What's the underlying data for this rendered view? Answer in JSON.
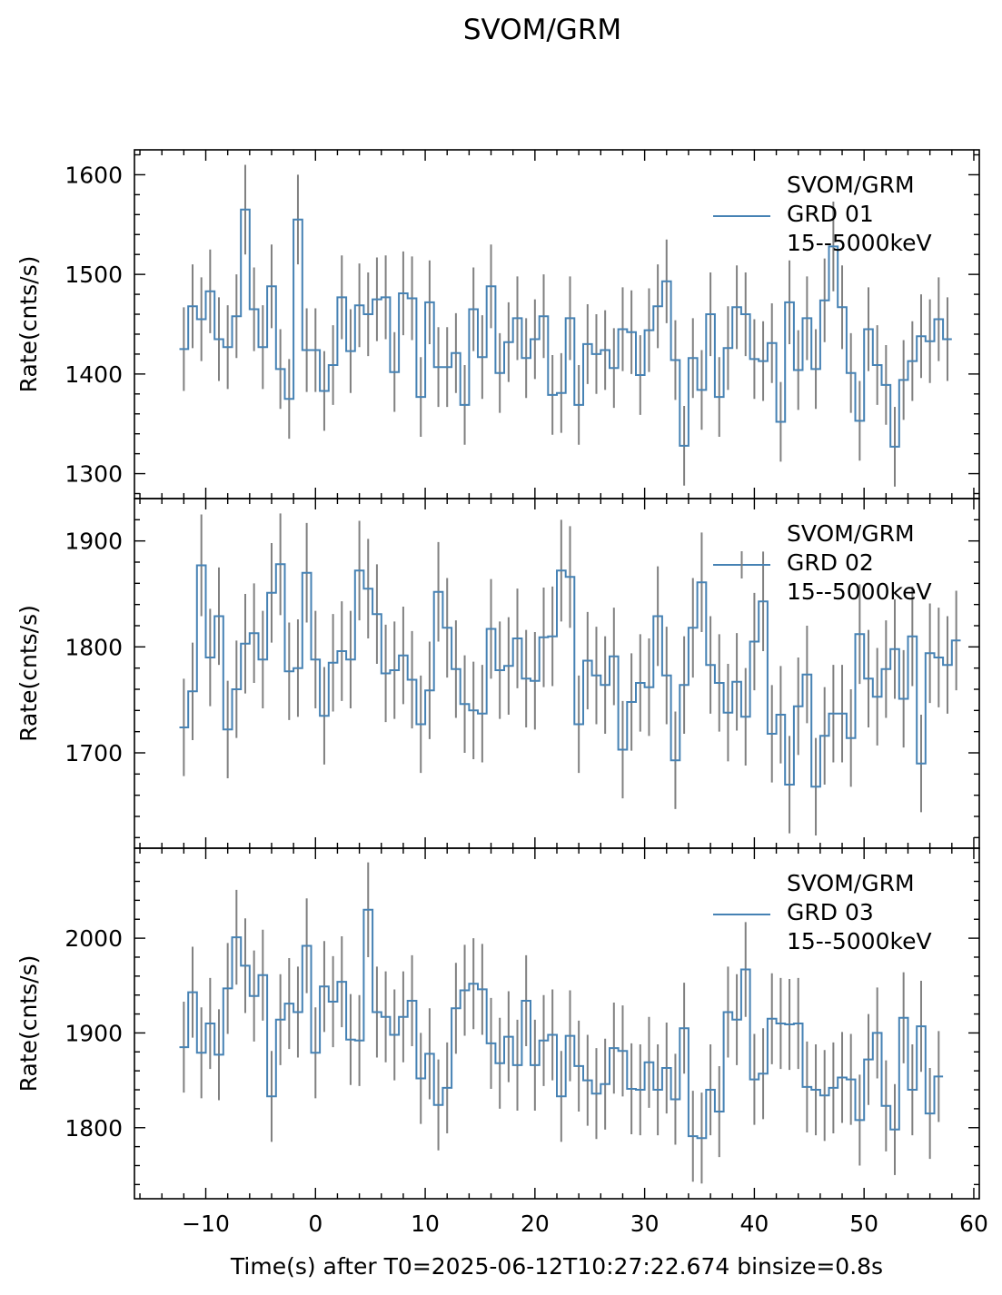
{
  "figure": {
    "title": "SVOM/GRM",
    "xlabel": "Time(s) after T0=2025-06-12T10:27:22.674 binsize=0.8s"
  },
  "colors": {
    "line": "#4682b4",
    "errorbar": "#808080",
    "axes": "#000000",
    "background": "#ffffff"
  },
  "chart_data": [
    {
      "type": "line",
      "style": "step",
      "legend": {
        "position": "top-right",
        "lines": [
          "SVOM/GRM",
          " GRD 01",
          "15--5000keV"
        ]
      },
      "ylabel": "Rate(cnts/s)",
      "xlim": [
        -16.5,
        60.5
      ],
      "ylim": [
        1275,
        1625
      ],
      "xticks": [
        -10,
        0,
        10,
        20,
        30,
        40,
        50,
        60
      ],
      "yticks": [
        1300,
        1400,
        1500,
        1600
      ],
      "x_start": -12.4,
      "binsize": 0.8,
      "values": [
        1425,
        1468,
        1455,
        1483,
        1435,
        1427,
        1458,
        1565,
        1465,
        1427,
        1488,
        1405,
        1375,
        1555,
        1424,
        1424,
        1383,
        1409,
        1477,
        1423,
        1469,
        1460,
        1475,
        1477,
        1402,
        1481,
        1476,
        1377,
        1472,
        1407,
        1407,
        1421,
        1369,
        1465,
        1417,
        1488,
        1401,
        1432,
        1456,
        1416,
        1435,
        1458,
        1379,
        1381,
        1456,
        1369,
        1430,
        1420,
        1424,
        1406,
        1445,
        1442,
        1399,
        1444,
        1468,
        1493,
        1414,
        1328,
        1416,
        1384,
        1460,
        1377,
        1426,
        1467,
        1460,
        1415,
        1413,
        1431,
        1352,
        1472,
        1404,
        1456,
        1405,
        1474,
        1528,
        1467,
        1401,
        1353,
        1445,
        1409,
        1389,
        1327,
        1394,
        1413,
        1438,
        1433,
        1455,
        1435
      ],
      "errors": [
        42,
        42,
        42,
        42,
        42,
        42,
        42,
        45,
        42,
        42,
        42,
        40,
        40,
        45,
        42,
        42,
        40,
        40,
        42,
        42,
        42,
        42,
        42,
        42,
        40,
        42,
        42,
        40,
        42,
        40,
        40,
        40,
        40,
        42,
        42,
        42,
        40,
        40,
        42,
        40,
        40,
        42,
        40,
        40,
        42,
        40,
        40,
        40,
        40,
        40,
        42,
        42,
        40,
        42,
        42,
        42,
        40,
        40,
        40,
        40,
        42,
        40,
        42,
        42,
        42,
        40,
        40,
        40,
        40,
        42,
        40,
        42,
        40,
        42,
        45,
        42,
        40,
        40,
        42,
        40,
        40,
        40,
        40,
        40,
        42,
        42,
        42,
        42
      ]
    },
    {
      "type": "line",
      "style": "step",
      "legend": {
        "position": "top-right",
        "lines": [
          "SVOM/GRM",
          " GRD 02",
          "15--5000keV"
        ]
      },
      "ylabel": "Rate(cnts/s)",
      "xlim": [
        -16.5,
        60.5
      ],
      "ylim": [
        1610,
        1940
      ],
      "xticks": [
        -10,
        0,
        10,
        20,
        30,
        40,
        50,
        60
      ],
      "yticks": [
        1700,
        1800,
        1900
      ],
      "x_start": -12.4,
      "binsize": 0.8,
      "values": [
        1724,
        1758,
        1877,
        1790,
        1829,
        1722,
        1760,
        1803,
        1813,
        1788,
        1851,
        1878,
        1777,
        1780,
        1870,
        1788,
        1735,
        1785,
        1796,
        1788,
        1872,
        1855,
        1831,
        1775,
        1778,
        1792,
        1769,
        1727,
        1759,
        1852,
        1818,
        1779,
        1746,
        1740,
        1737,
        1817,
        1778,
        1782,
        1808,
        1770,
        1768,
        1809,
        1810,
        1872,
        1866,
        1727,
        1787,
        1773,
        1764,
        1791,
        1703,
        1748,
        1766,
        1762,
        1829,
        1773,
        1693,
        1764,
        1818,
        1861,
        1783,
        1766,
        1738,
        1767,
        1734,
        1805,
        1843,
        1718,
        1736,
        1670,
        1744,
        1774,
        1668,
        1716,
        1737,
        1737,
        1714,
        1812,
        1770,
        1753,
        1779,
        1798,
        1751,
        1810,
        1690,
        1794,
        1790,
        1783,
        1806
      ],
      "errors": [
        46,
        46,
        48,
        46,
        46,
        46,
        46,
        47,
        47,
        46,
        47,
        48,
        46,
        46,
        47,
        46,
        46,
        46,
        47,
        46,
        47,
        47,
        47,
        46,
        46,
        46,
        46,
        46,
        46,
        47,
        47,
        46,
        46,
        46,
        46,
        47,
        46,
        46,
        47,
        46,
        46,
        47,
        47,
        48,
        48,
        46,
        46,
        46,
        46,
        46,
        46,
        46,
        46,
        46,
        47,
        46,
        46,
        46,
        47,
        47,
        46,
        46,
        46,
        46,
        46,
        46,
        47,
        46,
        46,
        46,
        46,
        46,
        46,
        46,
        46,
        46,
        46,
        47,
        46,
        46,
        46,
        47,
        46,
        47,
        46,
        47,
        47,
        46,
        47
      ]
    },
    {
      "type": "line",
      "style": "step",
      "legend": {
        "position": "top-right",
        "lines": [
          "SVOM/GRM",
          " GRD 03",
          "15--5000keV"
        ]
      },
      "ylabel": "Rate(cnts/s)",
      "xlim": [
        -16.5,
        60.5
      ],
      "ylim": [
        1725,
        2095
      ],
      "xticks": [
        -10,
        0,
        10,
        20,
        30,
        40,
        50,
        60
      ],
      "yticks": [
        1800,
        1900,
        2000
      ],
      "x_start": -12.4,
      "binsize": 0.8,
      "values": [
        1885,
        1943,
        1879,
        1910,
        1877,
        1947,
        2001,
        1971,
        1939,
        1961,
        1833,
        1914,
        1931,
        1922,
        1992,
        1879,
        1949,
        1933,
        1954,
        1893,
        1892,
        2030,
        1922,
        1917,
        1898,
        1917,
        1934,
        1852,
        1878,
        1824,
        1842,
        1926,
        1945,
        1952,
        1946,
        1889,
        1868,
        1896,
        1866,
        1934,
        1866,
        1892,
        1898,
        1833,
        1897,
        1865,
        1850,
        1836,
        1846,
        1884,
        1881,
        1841,
        1840,
        1869,
        1840,
        1863,
        1830,
        1905,
        1791,
        1789,
        1840,
        1817,
        1922,
        1914,
        1967,
        1851,
        1857,
        1915,
        1910,
        1909,
        1910,
        1843,
        1840,
        1834,
        1842,
        1853,
        1851,
        1808,
        1872,
        1900,
        1823,
        1798,
        1916,
        1840,
        1907,
        1815,
        1854
      ],
      "errors": [
        48,
        48,
        48,
        48,
        48,
        48,
        50,
        50,
        48,
        48,
        48,
        48,
        48,
        48,
        50,
        48,
        48,
        48,
        48,
        48,
        48,
        50,
        48,
        48,
        48,
        48,
        48,
        48,
        48,
        48,
        48,
        48,
        48,
        48,
        48,
        48,
        48,
        48,
        48,
        48,
        48,
        48,
        48,
        48,
        48,
        48,
        48,
        48,
        48,
        48,
        48,
        48,
        48,
        48,
        48,
        48,
        48,
        48,
        48,
        48,
        48,
        48,
        48,
        48,
        50,
        48,
        48,
        48,
        48,
        48,
        48,
        48,
        48,
        48,
        48,
        48,
        48,
        48,
        48,
        48,
        48,
        48,
        48,
        48,
        48,
        48,
        48
      ]
    }
  ]
}
